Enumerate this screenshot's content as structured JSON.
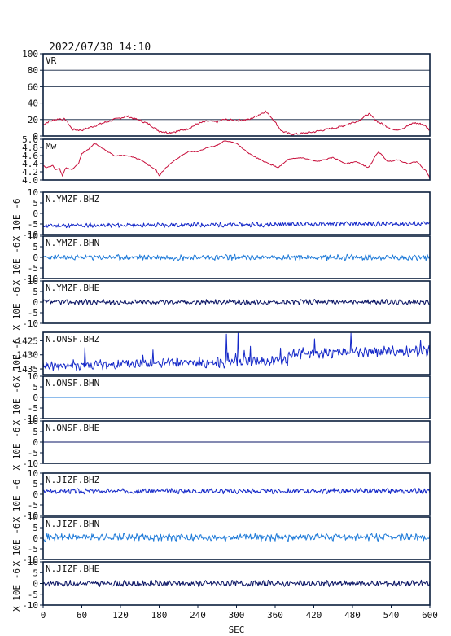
{
  "header": {
    "timestamp": "2022/07/30  14:10"
  },
  "colors": {
    "vr_mw": "#c8103c",
    "bhz": "#1428c8",
    "bhn": "#1e7ad8",
    "bhe": "#0a1464",
    "frame": "#0a1e3c"
  },
  "chart_data": [
    {
      "type": "line",
      "name": "VR",
      "ylim": [
        0,
        100
      ],
      "yticks": [
        "100",
        "80",
        "60",
        "40",
        "20",
        "0"
      ],
      "grid": true,
      "x": [
        0,
        10,
        25,
        35,
        45,
        60,
        75,
        90,
        110,
        130,
        150,
        165,
        180,
        195,
        210,
        225,
        240,
        255,
        270,
        280,
        300,
        320,
        335,
        345,
        355,
        370,
        385,
        400,
        420,
        440,
        460,
        475,
        490,
        505,
        520,
        545,
        560,
        575,
        590,
        600
      ],
      "values": [
        14,
        18,
        21,
        20,
        8,
        7,
        11,
        15,
        20,
        24,
        19,
        14,
        6,
        4,
        6,
        9,
        15,
        18,
        17,
        20,
        19,
        20,
        26,
        30,
        22,
        6,
        2,
        3,
        5,
        8,
        11,
        15,
        19,
        27,
        17,
        7,
        10,
        16,
        14,
        7
      ]
    },
    {
      "type": "line",
      "name": "Mw",
      "ylim": [
        4.0,
        5.0
      ],
      "yticks": [
        "5.0",
        "4.8",
        "4.6",
        "4.4",
        "4.2",
        "4.0"
      ],
      "grid": false,
      "x": [
        0,
        5,
        15,
        20,
        25,
        30,
        35,
        45,
        55,
        60,
        70,
        80,
        95,
        110,
        130,
        150,
        165,
        175,
        180,
        190,
        210,
        225,
        240,
        255,
        270,
        280,
        290,
        300,
        315,
        330,
        350,
        365,
        380,
        400,
        425,
        450,
        470,
        485,
        505,
        520,
        535,
        550,
        565,
        580,
        595,
        600
      ],
      "values": [
        4.35,
        4.3,
        4.35,
        4.25,
        4.3,
        4.1,
        4.3,
        4.25,
        4.4,
        4.65,
        4.75,
        4.9,
        4.75,
        4.6,
        4.6,
        4.5,
        4.35,
        4.25,
        4.1,
        4.3,
        4.55,
        4.7,
        4.7,
        4.8,
        4.85,
        4.95,
        4.95,
        4.9,
        4.7,
        4.55,
        4.4,
        4.3,
        4.5,
        4.55,
        4.45,
        4.55,
        4.4,
        4.45,
        4.3,
        4.7,
        4.45,
        4.5,
        4.4,
        4.45,
        4.2,
        4.05
      ]
    },
    {
      "type": "line",
      "name": "N.YMZF.BHZ",
      "ylim": [
        -10,
        10
      ],
      "yticks": [
        "10",
        "5",
        "0",
        "-5",
        "-10"
      ],
      "ylabel": "X 10E -6",
      "baseline": [
        -5.8,
        -4.8
      ],
      "amplitude": 0.9,
      "seed": 11
    },
    {
      "type": "line",
      "name": "N.YMZF.BHN",
      "ylim": [
        -10,
        10
      ],
      "yticks": [
        "10",
        "5",
        "0",
        "-5",
        "-10"
      ],
      "ylabel": "X 10E -6",
      "baseline": [
        0,
        0
      ],
      "amplitude": 1.1,
      "seed": 23
    },
    {
      "type": "line",
      "name": "N.YMZF.BHE",
      "ylim": [
        -10,
        10
      ],
      "yticks": [
        "10",
        "5",
        "0",
        "-5",
        "-10"
      ],
      "ylabel": "X 10E -6",
      "baseline": [
        0,
        0
      ],
      "amplitude": 1.0,
      "seed": 37
    },
    {
      "type": "line",
      "name": "N.ONSF.BHZ",
      "ylim": [
        -1437,
        -1422
      ],
      "yticks": [
        "-1425",
        "-1430",
        "-1435"
      ],
      "ylabel": "X 10E -6",
      "baseline": [
        -1434,
        -1431
      ],
      "amplitude": 1.5,
      "seed": 41,
      "spiky": true
    },
    {
      "type": "line",
      "name": "N.ONSF.BHN",
      "ylim": [
        -10,
        10
      ],
      "yticks": [
        "10",
        "5",
        "0",
        "-5",
        "-10"
      ],
      "ylabel": "X 10E -6",
      "baseline": [
        0,
        0
      ],
      "amplitude": 0,
      "seed": 53
    },
    {
      "type": "line",
      "name": "N.ONSF.BHE",
      "ylim": [
        -10,
        10
      ],
      "yticks": [
        "10",
        "5",
        "0",
        "-5",
        "-10"
      ],
      "ylabel": "X 10E -6",
      "baseline": [
        0,
        0
      ],
      "amplitude": 0,
      "seed": 59
    },
    {
      "type": "line",
      "name": "N.JIZF.BHZ",
      "ylim": [
        -10,
        10
      ],
      "yticks": [
        "10",
        "5",
        "0",
        "-5",
        "-10"
      ],
      "ylabel": "X 10E -6",
      "baseline": [
        1.5,
        1.5
      ],
      "amplitude": 1.0,
      "seed": 67
    },
    {
      "type": "line",
      "name": "N.JIZF.BHN",
      "ylim": [
        -10,
        10
      ],
      "yticks": [
        "10",
        "5",
        "0",
        "-5",
        "-10"
      ],
      "ylabel": "X 10E -6",
      "baseline": [
        0.5,
        0.5
      ],
      "amplitude": 1.4,
      "seed": 71
    },
    {
      "type": "line",
      "name": "N.JIZF.BHE",
      "ylim": [
        -10,
        10
      ],
      "yticks": [
        "10",
        "5",
        "0",
        "-5",
        "-10"
      ],
      "ylabel": "X 10E -6",
      "baseline": [
        0,
        0
      ],
      "amplitude": 1.1,
      "seed": 83
    }
  ],
  "x_axis": {
    "label": "SEC",
    "xlim": [
      0,
      600
    ],
    "ticks": [
      "0",
      "60",
      "120",
      "180",
      "240",
      "300",
      "360",
      "420",
      "480",
      "540",
      "600"
    ]
  }
}
